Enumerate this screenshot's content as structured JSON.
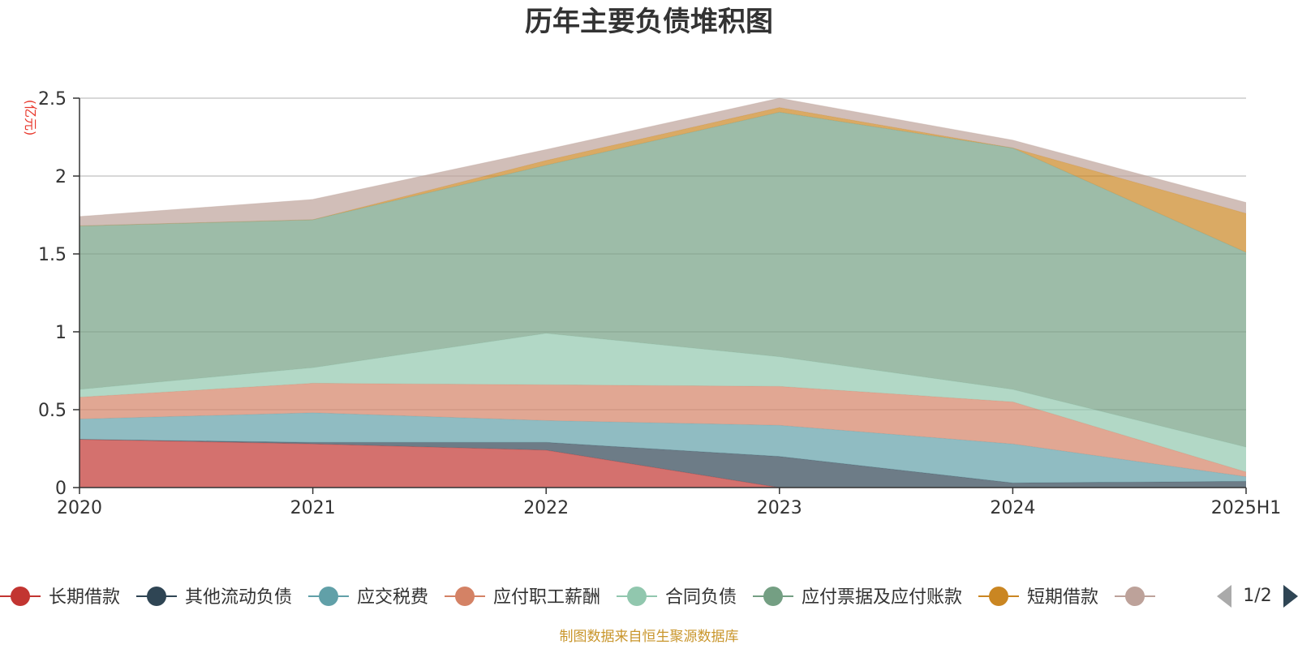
{
  "chart_data": {
    "type": "area",
    "stacked": true,
    "title": "历年主要负债堆积图",
    "unit_label": "(亿元)",
    "categories": [
      "2020",
      "2021",
      "2022",
      "2023",
      "2024",
      "2025H1"
    ],
    "ylim": [
      0,
      2.5
    ],
    "yticks": [
      "0",
      "0.5",
      "1",
      "1.5",
      "2",
      "2.5"
    ],
    "grid": true,
    "legend_position": "bottom",
    "series": [
      {
        "name": "长期借款",
        "color": "#c23531",
        "line_color": "#c23531",
        "values": [
          0.31,
          0.28,
          0.24,
          0.0,
          0.0,
          0.0
        ]
      },
      {
        "name": "其他流动负债",
        "color": "#2f4554",
        "line_color": "#2f4554",
        "values": [
          0.0,
          0.01,
          0.05,
          0.2,
          0.03,
          0.04
        ]
      },
      {
        "name": "应交税费",
        "color": "#61a0a8",
        "line_color": "#61a0a8",
        "values": [
          0.13,
          0.19,
          0.14,
          0.2,
          0.25,
          0.03
        ]
      },
      {
        "name": "应付职工薪酬",
        "color": "#d48265",
        "line_color": "#d48265",
        "values": [
          0.14,
          0.19,
          0.23,
          0.25,
          0.27,
          0.03
        ]
      },
      {
        "name": "合同负债",
        "color": "#91c7ae",
        "line_color": "#91c7ae",
        "values": [
          0.05,
          0.1,
          0.33,
          0.19,
          0.08,
          0.16
        ]
      },
      {
        "name": "应付票据及应付账款",
        "color": "#749f83",
        "line_color": "#749f83",
        "values": [
          1.05,
          0.95,
          1.08,
          1.57,
          1.55,
          1.25
        ]
      },
      {
        "name": "短期借款",
        "color": "#ca8622",
        "line_color": "#ca8622",
        "values": [
          0.0,
          0.0,
          0.03,
          0.03,
          0.0,
          0.25
        ]
      },
      {
        "name": "",
        "color": "#bda29a",
        "line_color": "#bda29a",
        "values": [
          0.06,
          0.13,
          0.07,
          0.06,
          0.05,
          0.07
        ]
      }
    ],
    "legend_page": "1/2"
  },
  "footer": {
    "source": "制图数据来自恒生聚源数据库"
  },
  "icons": {
    "prev": "triangle-left-icon",
    "next": "triangle-right-icon"
  }
}
